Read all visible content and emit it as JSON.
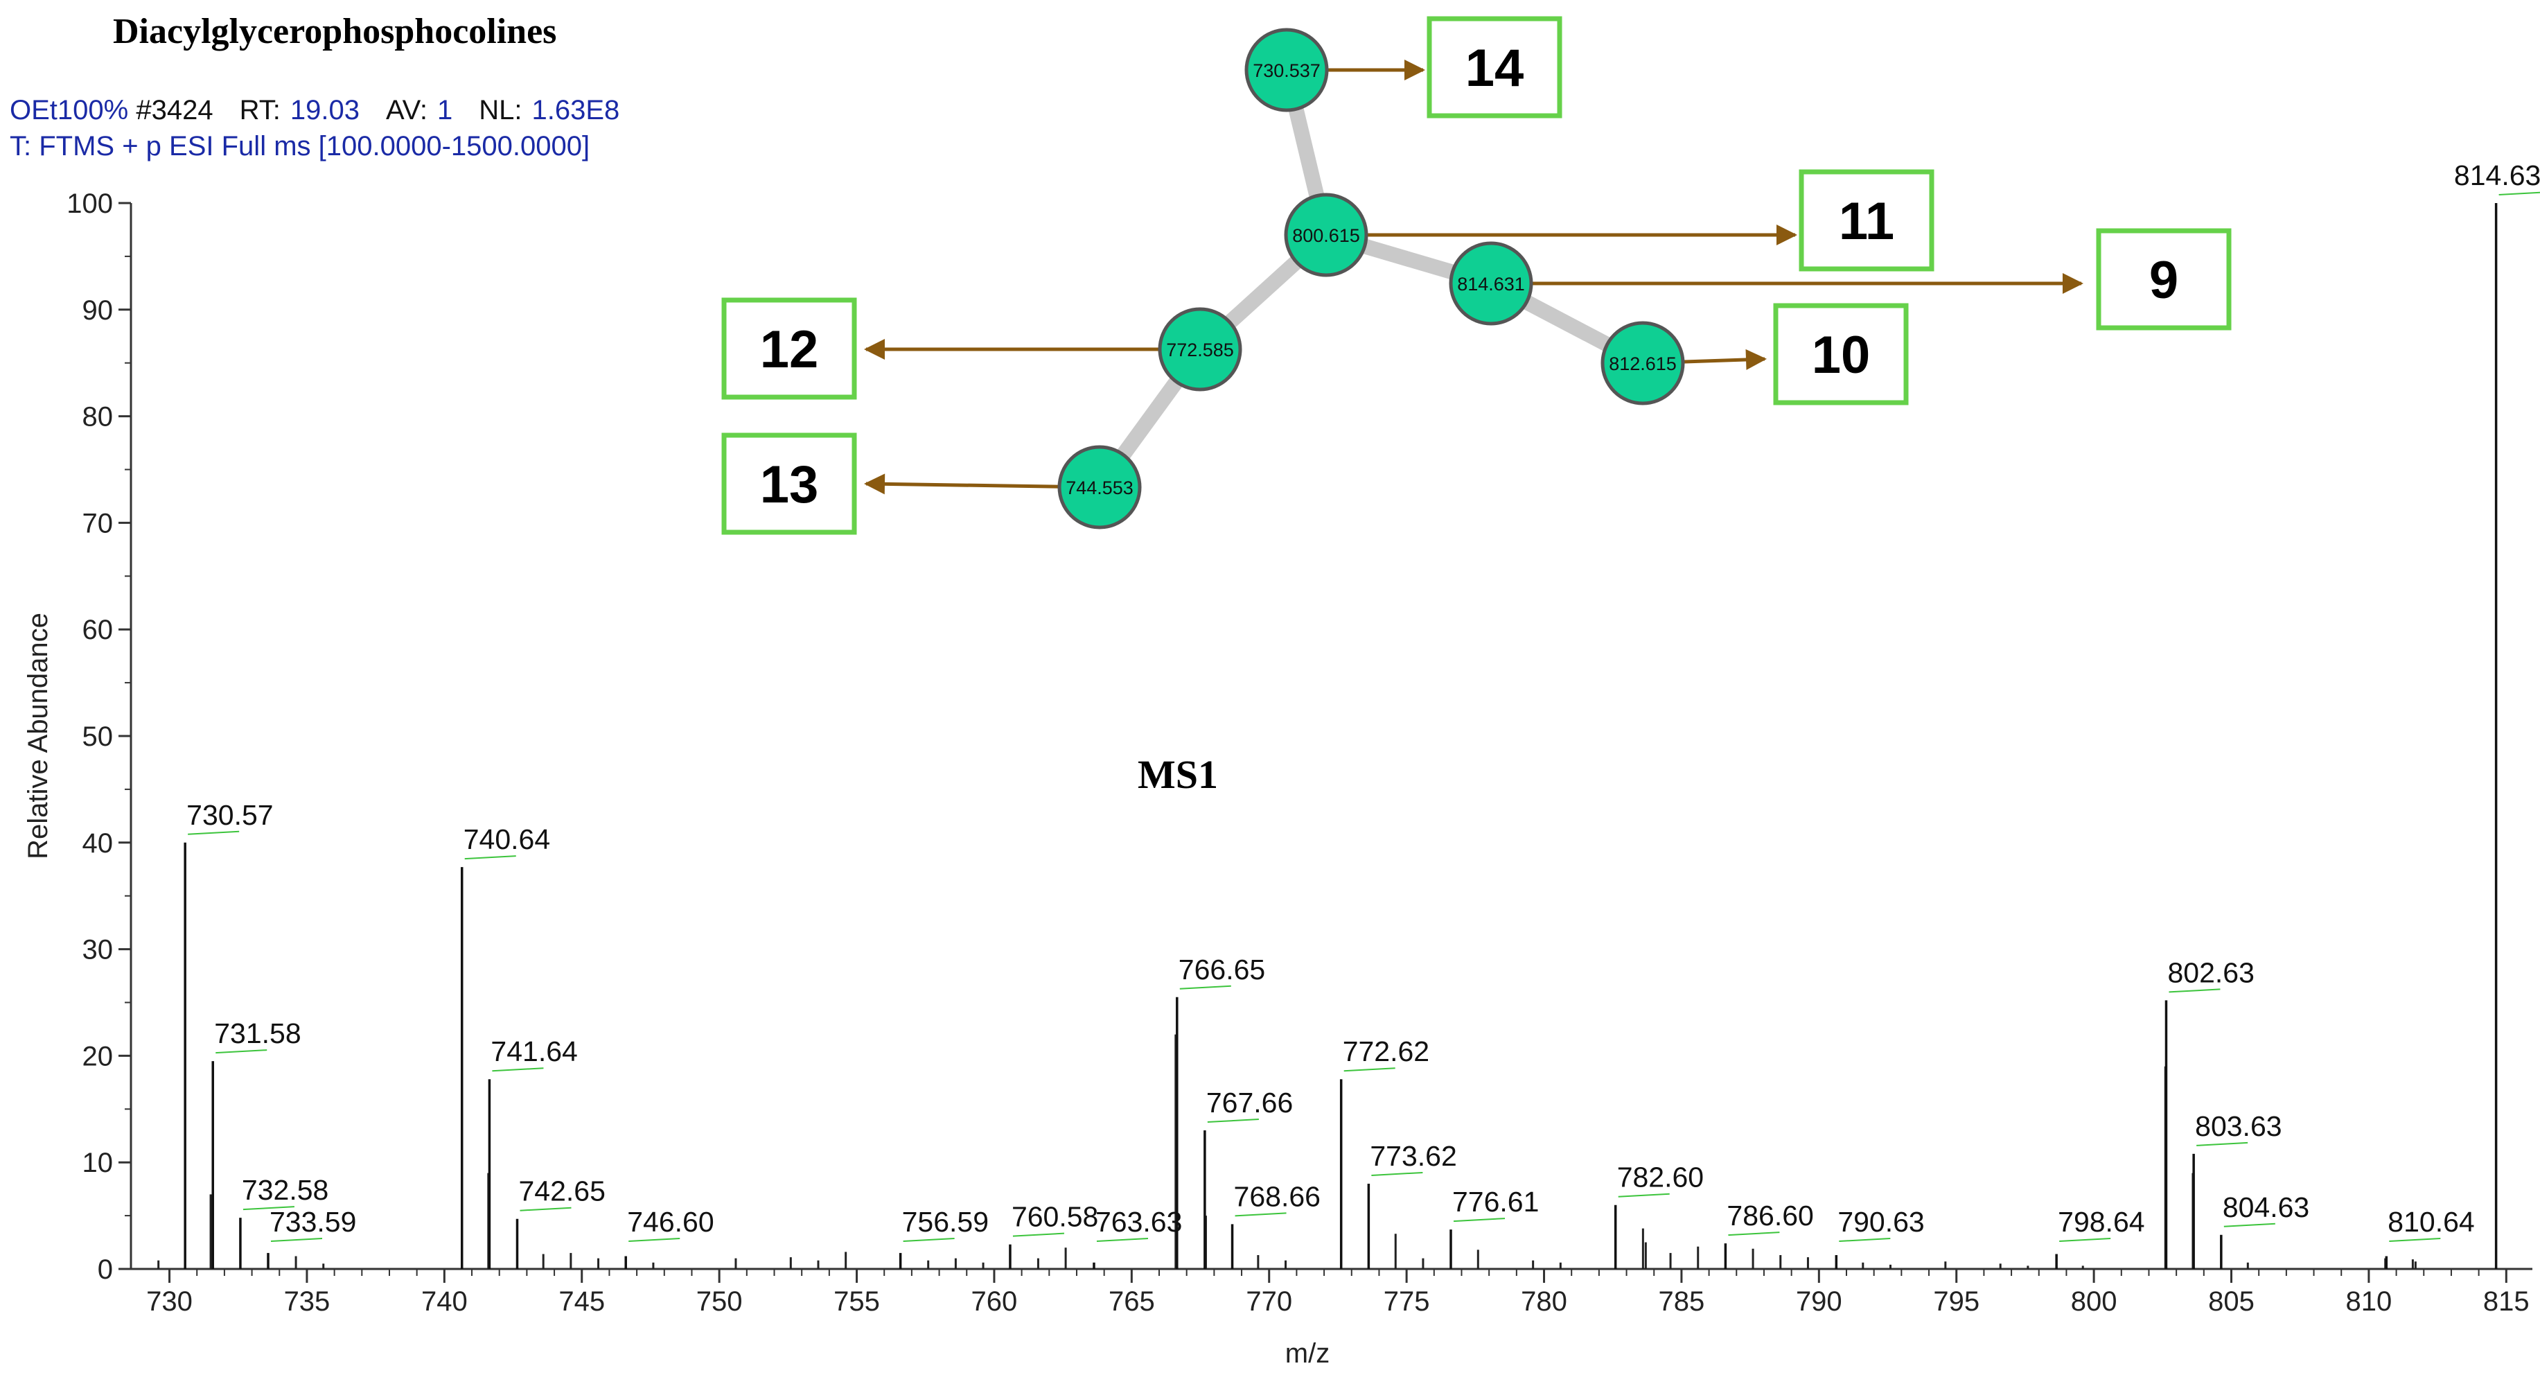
{
  "colors": {
    "header_blue": "#1a2aa6",
    "node_fill": "#0fcf93",
    "node_stroke": "#555555",
    "edge": "#c9c9c9",
    "arrow": "#8a5a10",
    "box_stroke": "#66d14a",
    "label_tick": "#3cc43c"
  },
  "chart_data": {
    "type": "bar",
    "title": "Diacylglycerophosphocolines",
    "header": {
      "line1_prefix": "OEt100% ",
      "line1_scan": "#3424",
      "rt_key": "RT:",
      "rt_val": "19.03",
      "av_key": "AV:",
      "av_val": "1",
      "nl_key": "NL:",
      "nl_val": "1.63E8",
      "line2": "T: FTMS + p ESI Full ms [100.0000-1500.0000]"
    },
    "xlabel": "m/z",
    "ylabel": "Relative Abundance",
    "xlim": [
      729,
      816
    ],
    "ylim": [
      0,
      100
    ],
    "xticks": [
      730,
      735,
      740,
      745,
      750,
      755,
      760,
      765,
      770,
      775,
      780,
      785,
      790,
      795,
      800,
      805,
      810,
      815
    ],
    "yticks": [
      0,
      10,
      20,
      30,
      40,
      50,
      60,
      70,
      80,
      90,
      100
    ],
    "grid": false,
    "annotation": "MS1",
    "labeled_peaks": [
      {
        "mz": 730.57,
        "y": 40,
        "label": "730.57"
      },
      {
        "mz": 731.58,
        "y": 19.5,
        "label": "731.58"
      },
      {
        "mz": 732.58,
        "y": 4.8,
        "label": "732.58"
      },
      {
        "mz": 733.59,
        "y": 1.5,
        "label": "733.59"
      },
      {
        "mz": 740.64,
        "y": 37.7,
        "label": "740.64"
      },
      {
        "mz": 741.64,
        "y": 17.8,
        "label": "741.64"
      },
      {
        "mz": 742.65,
        "y": 4.7,
        "label": "742.65"
      },
      {
        "mz": 746.6,
        "y": 1.2,
        "label": "746.60"
      },
      {
        "mz": 756.59,
        "y": 1.5,
        "label": "756.59"
      },
      {
        "mz": 760.58,
        "y": 2.3,
        "label": "760.58"
      },
      {
        "mz": 763.63,
        "y": 0.6,
        "label": "763.63"
      },
      {
        "mz": 766.65,
        "y": 25.5,
        "label": "766.65"
      },
      {
        "mz": 767.66,
        "y": 13.0,
        "label": "767.66"
      },
      {
        "mz": 768.66,
        "y": 4.2,
        "label": "768.66"
      },
      {
        "mz": 772.62,
        "y": 17.8,
        "label": "772.62"
      },
      {
        "mz": 773.62,
        "y": 8.0,
        "label": "773.62"
      },
      {
        "mz": 776.61,
        "y": 3.7,
        "label": "776.61"
      },
      {
        "mz": 782.6,
        "y": 6.0,
        "label": "782.60"
      },
      {
        "mz": 786.6,
        "y": 2.4,
        "label": "786.60"
      },
      {
        "mz": 790.63,
        "y": 1.3,
        "label": "790.63"
      },
      {
        "mz": 798.64,
        "y": 1.4,
        "label": "798.64"
      },
      {
        "mz": 802.63,
        "y": 25.2,
        "label": "802.63"
      },
      {
        "mz": 803.63,
        "y": 10.8,
        "label": "803.63"
      },
      {
        "mz": 804.63,
        "y": 3.2,
        "label": "804.63"
      },
      {
        "mz": 810.64,
        "y": 1.2,
        "label": "810.64"
      },
      {
        "mz": 814.63,
        "y": 100,
        "label": "814.63"
      }
    ],
    "minor_peaks": [
      {
        "mz": 729.6,
        "y": 0.8
      },
      {
        "mz": 731.5,
        "y": 7.0
      },
      {
        "mz": 734.6,
        "y": 1.2
      },
      {
        "mz": 735.6,
        "y": 0.5
      },
      {
        "mz": 741.6,
        "y": 9.0
      },
      {
        "mz": 743.6,
        "y": 1.4
      },
      {
        "mz": 744.6,
        "y": 1.5
      },
      {
        "mz": 745.6,
        "y": 1.0
      },
      {
        "mz": 747.6,
        "y": 0.6
      },
      {
        "mz": 750.6,
        "y": 1.0
      },
      {
        "mz": 752.6,
        "y": 1.1
      },
      {
        "mz": 753.6,
        "y": 0.8
      },
      {
        "mz": 754.6,
        "y": 1.6
      },
      {
        "mz": 757.6,
        "y": 0.8
      },
      {
        "mz": 758.6,
        "y": 1.0
      },
      {
        "mz": 759.6,
        "y": 0.6
      },
      {
        "mz": 761.6,
        "y": 1.0
      },
      {
        "mz": 762.6,
        "y": 2.0
      },
      {
        "mz": 766.6,
        "y": 22.0
      },
      {
        "mz": 767.7,
        "y": 5.0
      },
      {
        "mz": 769.6,
        "y": 1.3
      },
      {
        "mz": 770.6,
        "y": 0.8
      },
      {
        "mz": 774.6,
        "y": 3.3
      },
      {
        "mz": 775.6,
        "y": 1.0
      },
      {
        "mz": 777.6,
        "y": 1.8
      },
      {
        "mz": 779.6,
        "y": 0.8
      },
      {
        "mz": 780.6,
        "y": 0.6
      },
      {
        "mz": 783.6,
        "y": 3.8
      },
      {
        "mz": 783.7,
        "y": 2.5
      },
      {
        "mz": 784.6,
        "y": 1.5
      },
      {
        "mz": 785.6,
        "y": 2.1
      },
      {
        "mz": 787.6,
        "y": 1.9
      },
      {
        "mz": 788.6,
        "y": 1.3
      },
      {
        "mz": 789.6,
        "y": 1.1
      },
      {
        "mz": 791.6,
        "y": 0.6
      },
      {
        "mz": 792.6,
        "y": 0.4
      },
      {
        "mz": 794.6,
        "y": 0.7
      },
      {
        "mz": 796.6,
        "y": 0.5
      },
      {
        "mz": 797.6,
        "y": 0.3
      },
      {
        "mz": 799.6,
        "y": 0.3
      },
      {
        "mz": 802.6,
        "y": 19.0
      },
      {
        "mz": 803.6,
        "y": 9.0
      },
      {
        "mz": 805.6,
        "y": 0.6
      },
      {
        "mz": 810.6,
        "y": 1.0
      },
      {
        "mz": 811.6,
        "y": 0.9
      },
      {
        "mz": 811.7,
        "y": 0.7
      }
    ],
    "network": {
      "nodes": [
        {
          "id": "730.537",
          "label": "730.537",
          "box": "14"
        },
        {
          "id": "800.615",
          "label": "800.615",
          "box": "11"
        },
        {
          "id": "814.631",
          "label": "814.631",
          "box": "9"
        },
        {
          "id": "812.615",
          "label": "812.615",
          "box": "10"
        },
        {
          "id": "772.585",
          "label": "772.585",
          "box": "12"
        },
        {
          "id": "744.553",
          "label": "744.553",
          "box": "13"
        }
      ],
      "edges": [
        [
          "730.537",
          "800.615"
        ],
        [
          "800.615",
          "814.631"
        ],
        [
          "814.631",
          "812.615"
        ],
        [
          "800.615",
          "772.585"
        ],
        [
          "772.585",
          "744.553"
        ]
      ],
      "boxes": [
        "14",
        "11",
        "9",
        "10",
        "12",
        "13"
      ]
    }
  }
}
